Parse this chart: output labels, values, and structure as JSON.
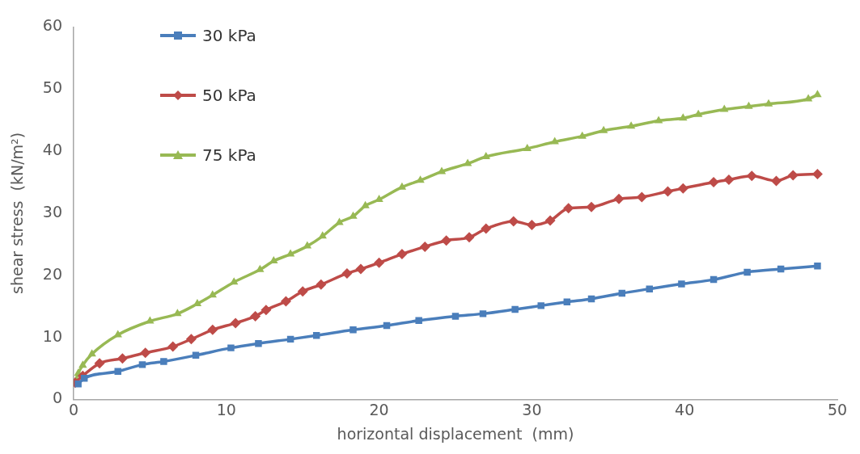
{
  "chart_data": {
    "type": "line",
    "xlabel": "horizontal displacement  (mm)",
    "ylabel": "shear stress  (kN/m²)",
    "xlim": [
      0,
      50
    ],
    "xticks": [
      0,
      10,
      20,
      30,
      40,
      50
    ],
    "ylim": [
      0,
      60
    ],
    "yticks": [
      0,
      10,
      20,
      30,
      40,
      50,
      60
    ],
    "grid": false,
    "legend": "top left",
    "line_style": "solid",
    "series": [
      {
        "name": "30 kPa",
        "color": "#4a7ebb",
        "marker": "square",
        "x": [
          0.3,
          0.7,
          2.9,
          4.5,
          5.9,
          8.0,
          10.3,
          12.1,
          14.2,
          15.9,
          18.3,
          20.5,
          22.6,
          25.0,
          26.8,
          28.9,
          30.6,
          32.3,
          33.9,
          35.9,
          37.7,
          39.8,
          41.9,
          44.1,
          46.3,
          48.7
        ],
        "values": [
          2.5,
          3.4,
          4.5,
          5.6,
          6.1,
          7.1,
          8.3,
          9.0,
          9.7,
          10.3,
          11.2,
          11.9,
          12.7,
          13.4,
          13.8,
          14.5,
          15.1,
          15.7,
          16.2,
          17.1,
          17.8,
          18.6,
          19.3,
          20.5,
          21.0,
          21.5
        ]
      },
      {
        "name": "50 kPa",
        "color": "#be4b48",
        "marker": "diamond",
        "x": [
          0.1,
          0.6,
          1.7,
          3.2,
          4.7,
          6.5,
          7.7,
          9.1,
          10.6,
          11.9,
          12.6,
          13.9,
          15.0,
          16.2,
          17.9,
          18.8,
          20.0,
          21.5,
          23.0,
          24.4,
          25.9,
          27.0,
          28.8,
          30.0,
          31.2,
          32.4,
          33.9,
          35.7,
          37.2,
          38.9,
          39.9,
          41.9,
          42.9,
          44.4,
          46.0,
          47.1,
          48.7
        ],
        "values": [
          2.7,
          3.8,
          5.8,
          6.6,
          7.5,
          8.5,
          9.7,
          11.2,
          12.3,
          13.4,
          14.4,
          15.8,
          17.4,
          18.5,
          20.3,
          21.0,
          22.0,
          23.4,
          24.6,
          25.6,
          26.1,
          27.5,
          28.7,
          28.1,
          28.8,
          30.8,
          31.0,
          32.3,
          32.6,
          33.5,
          34.0,
          35.0,
          35.4,
          36.0,
          35.2,
          36.1,
          36.3
        ]
      },
      {
        "name": "75 kPa",
        "color": "#98b954",
        "marker": "triangle",
        "x": [
          0.1,
          0.3,
          0.6,
          1.2,
          2.9,
          5.0,
          6.8,
          8.1,
          9.1,
          10.5,
          12.2,
          13.1,
          14.2,
          15.3,
          16.3,
          17.4,
          18.3,
          19.1,
          20.0,
          21.5,
          22.7,
          24.1,
          25.8,
          27.0,
          29.7,
          31.5,
          33.3,
          34.7,
          36.5,
          38.3,
          39.9,
          40.9,
          42.6,
          44.2,
          45.5,
          48.1,
          48.7
        ],
        "values": [
          2.8,
          4.2,
          5.5,
          7.3,
          10.4,
          12.6,
          13.8,
          15.4,
          16.8,
          18.9,
          20.9,
          22.3,
          23.4,
          24.7,
          26.3,
          28.5,
          29.5,
          31.2,
          32.2,
          34.2,
          35.3,
          36.7,
          38.0,
          39.1,
          40.4,
          41.5,
          42.4,
          43.3,
          44.0,
          44.9,
          45.3,
          45.9,
          46.7,
          47.2,
          47.6,
          48.4,
          49.1
        ]
      }
    ]
  }
}
